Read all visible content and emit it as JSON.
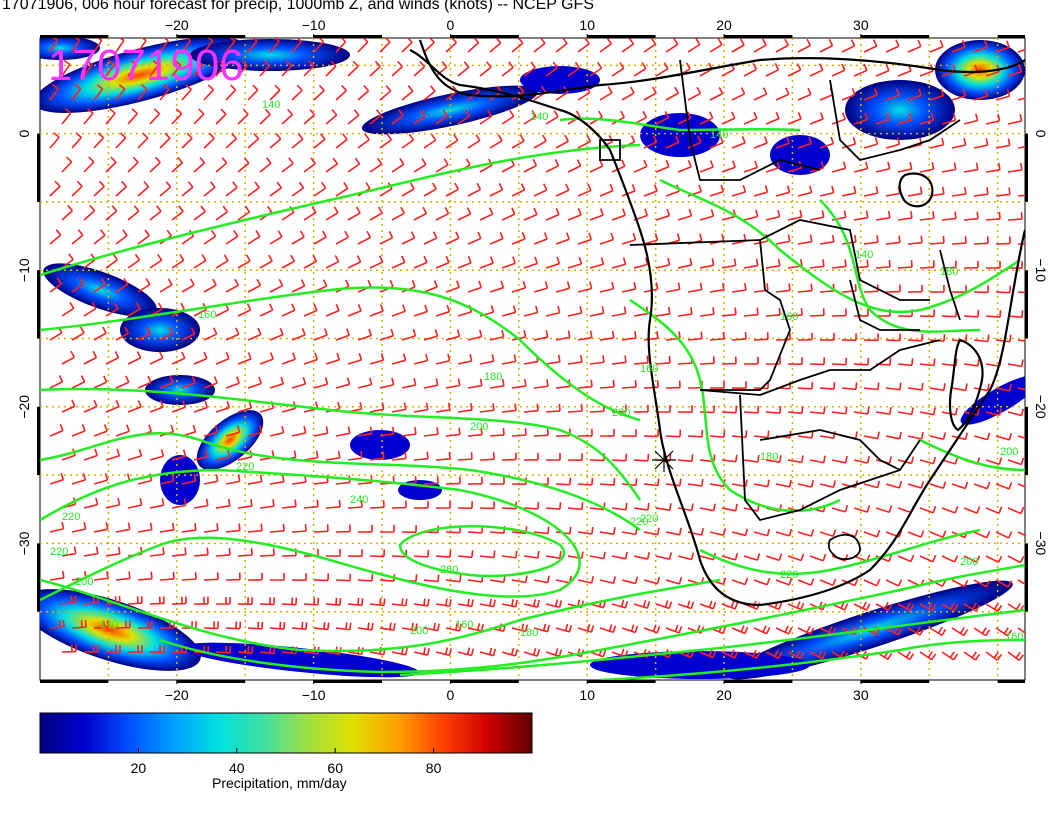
{
  "title": "17071906, 006 hour forecast for precip, 1000mb Z, and winds (knots) -- NCEP GFS",
  "stamp": "17071906",
  "x_axis": {
    "top_labels": [
      "−20",
      "−10",
      "0",
      "10",
      "20",
      "30"
    ],
    "bottom_labels": [
      "−20",
      "−10",
      "0",
      "10",
      "20",
      "30"
    ],
    "values": [
      -20,
      -10,
      0,
      10,
      20,
      30
    ],
    "range": [
      -30,
      42
    ]
  },
  "y_axis": {
    "left_labels": [
      "0",
      "−10",
      "−20",
      "−30"
    ],
    "right_labels": [
      "0",
      "−10",
      "−20",
      "−30"
    ],
    "values": [
      0,
      -10,
      -20,
      -30
    ],
    "range": [
      -40,
      7
    ]
  },
  "contour_labels": [
    "140",
    "140",
    "140",
    "140",
    "160",
    "160",
    "160",
    "180",
    "180",
    "200",
    "200",
    "220",
    "220",
    "240",
    "260",
    "220",
    "220",
    "200",
    "200",
    "180",
    "160",
    "140",
    "160",
    "180",
    "200",
    "220",
    "220",
    "200"
  ],
  "colorbar": {
    "ticks": [
      "20",
      "40",
      "60",
      "80"
    ],
    "tick_values": [
      20,
      40,
      60,
      80
    ],
    "range": [
      0,
      100
    ],
    "label": "Precipitation, mm/day",
    "colors": [
      "#000080",
      "#0000d0",
      "#0050ff",
      "#00a0ff",
      "#00e0e0",
      "#40e0a0",
      "#a0e040",
      "#e0e000",
      "#ffa000",
      "#ff4000",
      "#d00000",
      "#600000"
    ]
  },
  "colors": {
    "contour": "#22ee22",
    "barb": "#ff2020",
    "coast": "#000000",
    "grid": "#d4b000",
    "stamp": "#ff33ff"
  }
}
